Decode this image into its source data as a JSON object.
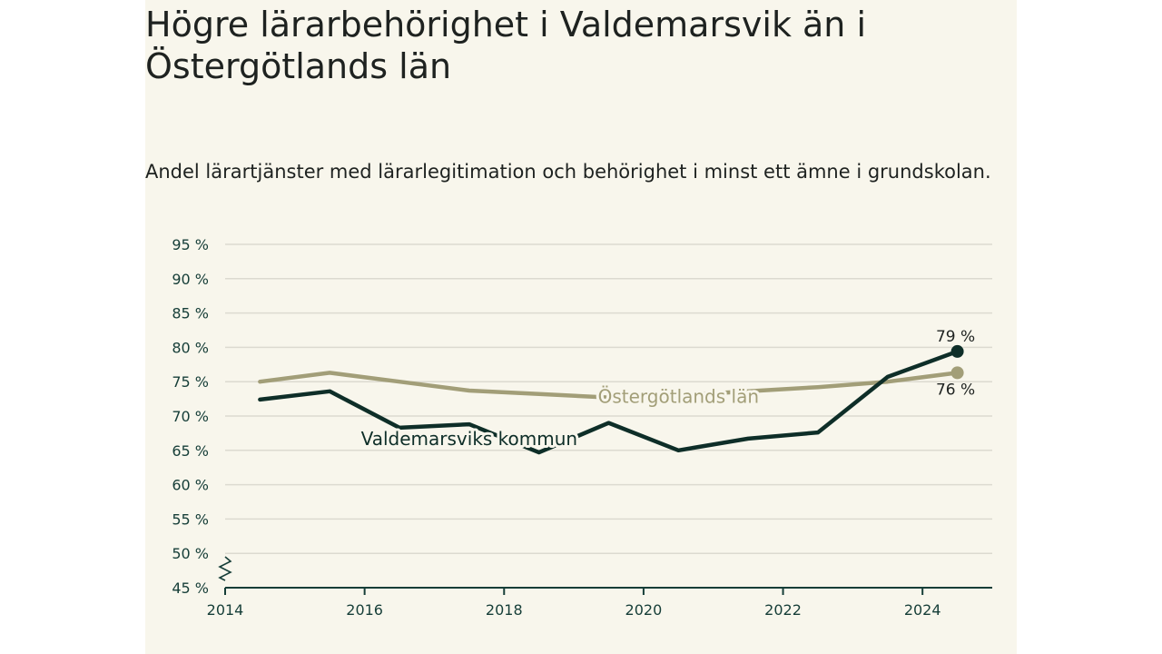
{
  "page": {
    "title": "Högre lärarbehörighet i Valdemarsvik än i Östergötlands län",
    "subtitle": "Andel lärartjänster med lärarlegitimation och behörighet i minst ett ämne i grundskolan."
  },
  "colors": {
    "background": "#f8f6ec",
    "kommun": "#0e2e28",
    "lan": "#a29e78",
    "grid": "#dcdad0",
    "axis": "#163e38"
  },
  "chart_data": {
    "type": "line",
    "title": "Högre lärarbehörighet i Valdemarsvik än i Östergötlands län",
    "subtitle": "Andel lärartjänster med lärarlegitimation och behörighet i minst ett ämne i grundskolan.",
    "xlim": [
      2014,
      2025
    ],
    "ylim": [
      45,
      95
    ],
    "x_ticks": [
      2014,
      2016,
      2018,
      2020,
      2022,
      2024
    ],
    "y_ticks": [
      45,
      50,
      55,
      60,
      65,
      70,
      75,
      80,
      85,
      90,
      95
    ],
    "y_tick_labels": [
      "45 %",
      "50 %",
      "55 %",
      "60 %",
      "65 %",
      "70 %",
      "75 %",
      "80 %",
      "85 %",
      "90 %",
      "95 %"
    ],
    "y_axis_break": true,
    "grid": true,
    "series": [
      {
        "name": "Östergötlands län",
        "color": "#a29e78",
        "x": [
          2014.5,
          2015.5,
          2016.5,
          2017.5,
          2018.5,
          2019.5,
          2020.5,
          2021.5,
          2022.5,
          2023.5,
          2024.5
        ],
        "values": [
          75.0,
          76.3,
          75.0,
          73.7,
          73.2,
          72.7,
          73.0,
          73.6,
          74.2,
          75.0,
          76.3
        ],
        "end_label": "76 %"
      },
      {
        "name": "Valdemarsviks kommun",
        "color": "#0e2e28",
        "x": [
          2014.5,
          2015.5,
          2016.5,
          2017.5,
          2018.5,
          2019.5,
          2020.5,
          2021.5,
          2022.5,
          2023.5,
          2024.5
        ],
        "values": [
          72.4,
          73.6,
          68.3,
          68.8,
          64.7,
          69.0,
          65.0,
          66.7,
          67.6,
          75.7,
          79.4
        ],
        "end_label": "79 %"
      }
    ]
  }
}
